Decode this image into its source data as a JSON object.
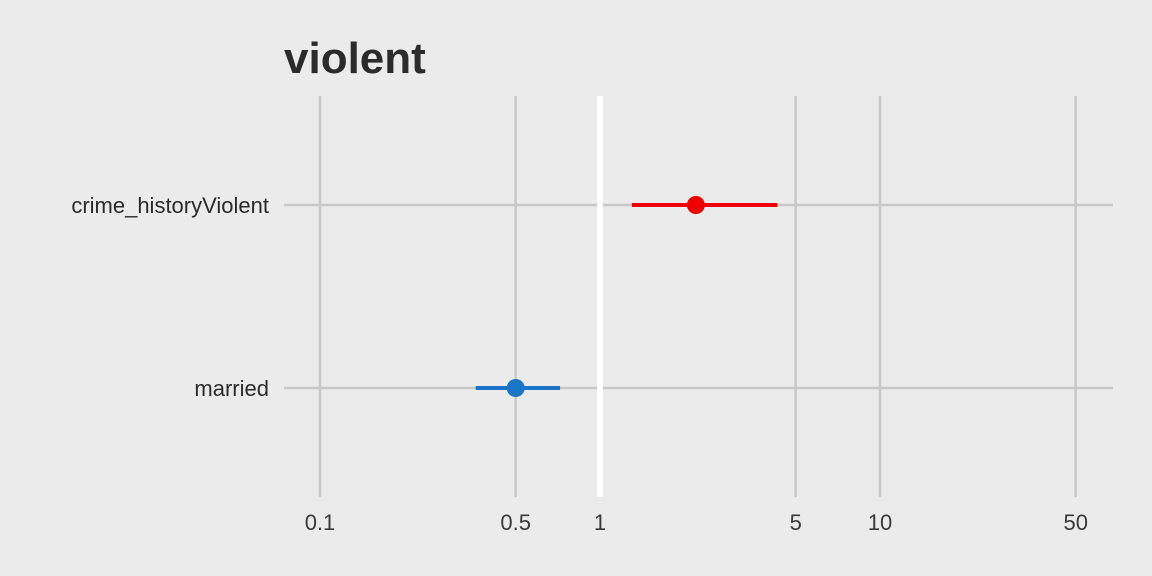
{
  "chart_data": {
    "type": "scatter",
    "title": "violent",
    "xlabel": "",
    "ylabel": "",
    "x_scale": "log",
    "xlim": [
      0.1,
      65
    ],
    "x_ticks": [
      {
        "value": 0.1,
        "label": "0.1"
      },
      {
        "value": 0.5,
        "label": "0.5"
      },
      {
        "value": 1,
        "label": "1"
      },
      {
        "value": 5,
        "label": "5"
      },
      {
        "value": 10,
        "label": "10"
      },
      {
        "value": 50,
        "label": "50"
      }
    ],
    "reference_line": 1,
    "grid": true,
    "legend": "none",
    "categories": [
      "crime_historyViolent",
      "married"
    ],
    "estimates": [
      {
        "term": "crime_historyViolent",
        "estimate": 2.2,
        "conf_low": 1.3,
        "conf_high": 4.3,
        "color": "#ee0000"
      },
      {
        "term": "married",
        "estimate": 0.5,
        "conf_low": 0.36,
        "conf_high": 0.72,
        "color": "#1a75c8"
      }
    ]
  }
}
